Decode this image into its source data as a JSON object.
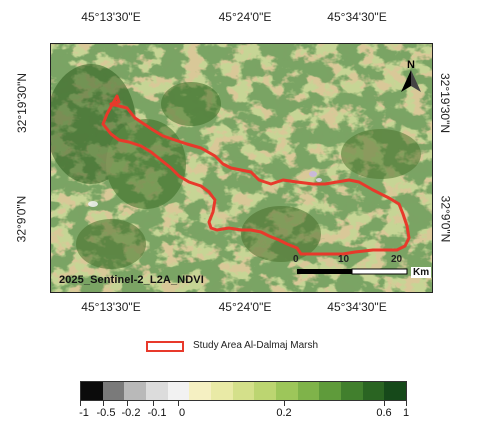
{
  "map": {
    "title": "2025_Sentinel-2_L2A_NDVI",
    "top_coords": [
      "45°13'30\"E",
      "45°24'0\"E",
      "45°34'30\"E"
    ],
    "bottom_coords": [
      "45°13'30\"E",
      "45°24'0\"E",
      "45°34'30\"E"
    ],
    "left_coords": [
      "32°19'30\"N",
      "32°9'0\"N"
    ],
    "right_coords": [
      "32°19'30\"N",
      "32°9'0\"N"
    ],
    "north_label": "N",
    "scale_bar": {
      "labels": [
        "0",
        "10",
        "20"
      ],
      "unit": "Km"
    },
    "boundary_color": "#e8392b"
  },
  "legend": {
    "label": "Study Area Al-Dalmaj Marsh",
    "swatch_color": "#e8392b"
  },
  "colorbar": {
    "colors": [
      "#0b0b0b",
      "#7a7a7a",
      "#b9b9b9",
      "#dcdcdc",
      "#f2f2f2",
      "#f5f0c2",
      "#e9eaa6",
      "#d4e08a",
      "#bcd571",
      "#9dc65a",
      "#7fb34a",
      "#5f9b3b",
      "#417f2d",
      "#2a6422",
      "#16491a"
    ],
    "labels": [
      "-1",
      "-0.5",
      "-0.2",
      "-0.1",
      "0",
      "0.2",
      "0.6",
      "1"
    ]
  }
}
